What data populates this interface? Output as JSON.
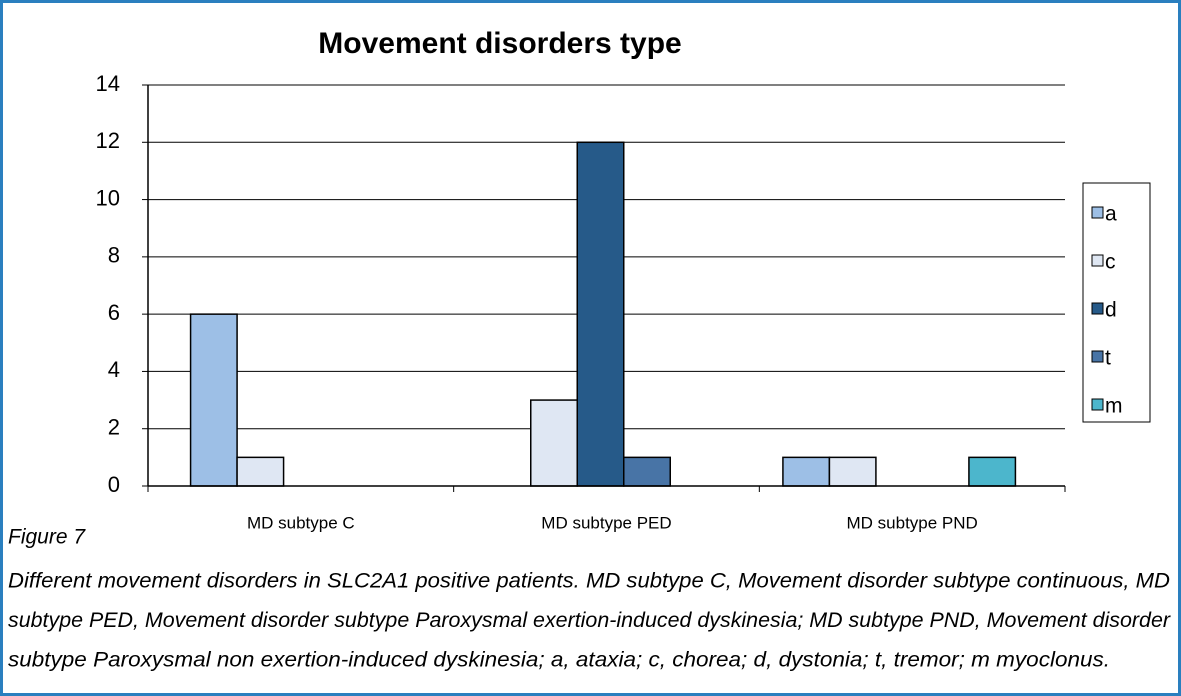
{
  "chart_data": {
    "type": "bar",
    "title": "Movement disorders type",
    "categories": [
      "MD subtype C",
      "MD subtype PED",
      "MD subtype PND"
    ],
    "series": [
      {
        "name": "a",
        "color": "#9dbfe6",
        "values": [
          6,
          0,
          1
        ]
      },
      {
        "name": "c",
        "color": "#dfe7f3",
        "values": [
          1,
          3,
          1
        ]
      },
      {
        "name": "d",
        "color": "#265a89",
        "values": [
          0,
          12,
          0
        ]
      },
      {
        "name": "t",
        "color": "#4874a6",
        "values": [
          0,
          1,
          0
        ]
      },
      {
        "name": "m",
        "color": "#4cb6cc",
        "values": [
          0,
          0,
          1
        ]
      }
    ],
    "ylim": [
      0,
      14
    ],
    "yticks": [
      0,
      2,
      4,
      6,
      8,
      10,
      12,
      14
    ],
    "grid": true,
    "legend": "right"
  },
  "caption": {
    "label": "Figure 7",
    "lines": [
      "Different movement disorders in SLC2A1 positive patients. MD subtype C, Movement disorder subtype continuous, MD",
      "subtype PED, Movement disorder subtype Paroxysmal exertion-induced dyskinesia; MD subtype PND, Movement disorder",
      "subtype Paroxysmal non exertion-induced dyskinesia; a, ataxia; c, chorea; d, dystonia; t, tremor; m myoclonus."
    ]
  }
}
